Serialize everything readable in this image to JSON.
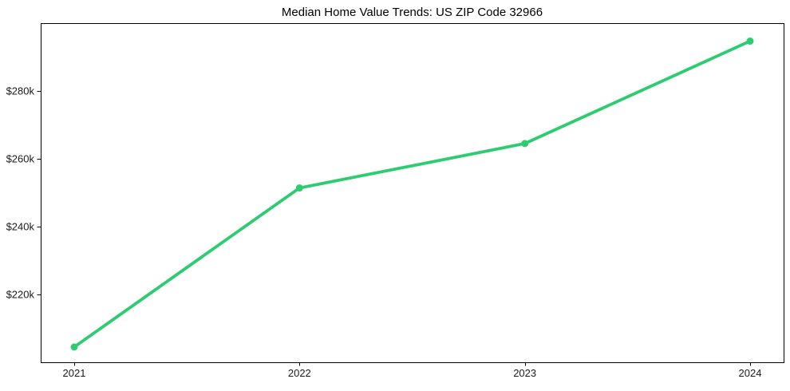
{
  "page": {
    "background_color": "#ffffff"
  },
  "chart_data": {
    "type": "line",
    "title": "Median Home Value Trends: US ZIP Code 32966",
    "categories": [
      "2021",
      "2022",
      "2023",
      "2024"
    ],
    "series": [
      {
        "values": [
          204500,
          251400,
          264500,
          294700
        ],
        "color": "#2ecc71",
        "marker": "circle"
      }
    ],
    "ylim": [
      200000,
      300000
    ],
    "y_ticks": [
      {
        "value": 220000,
        "label": "$220k"
      },
      {
        "value": 240000,
        "label": "$240k"
      },
      {
        "value": 260000,
        "label": "$260k"
      },
      {
        "value": 280000,
        "label": "$280k"
      }
    ],
    "grid": false,
    "legend": "none",
    "axis_color": "#000000",
    "tick_label_color": "#1a1a1a",
    "xlabel": "",
    "ylabel": ""
  }
}
